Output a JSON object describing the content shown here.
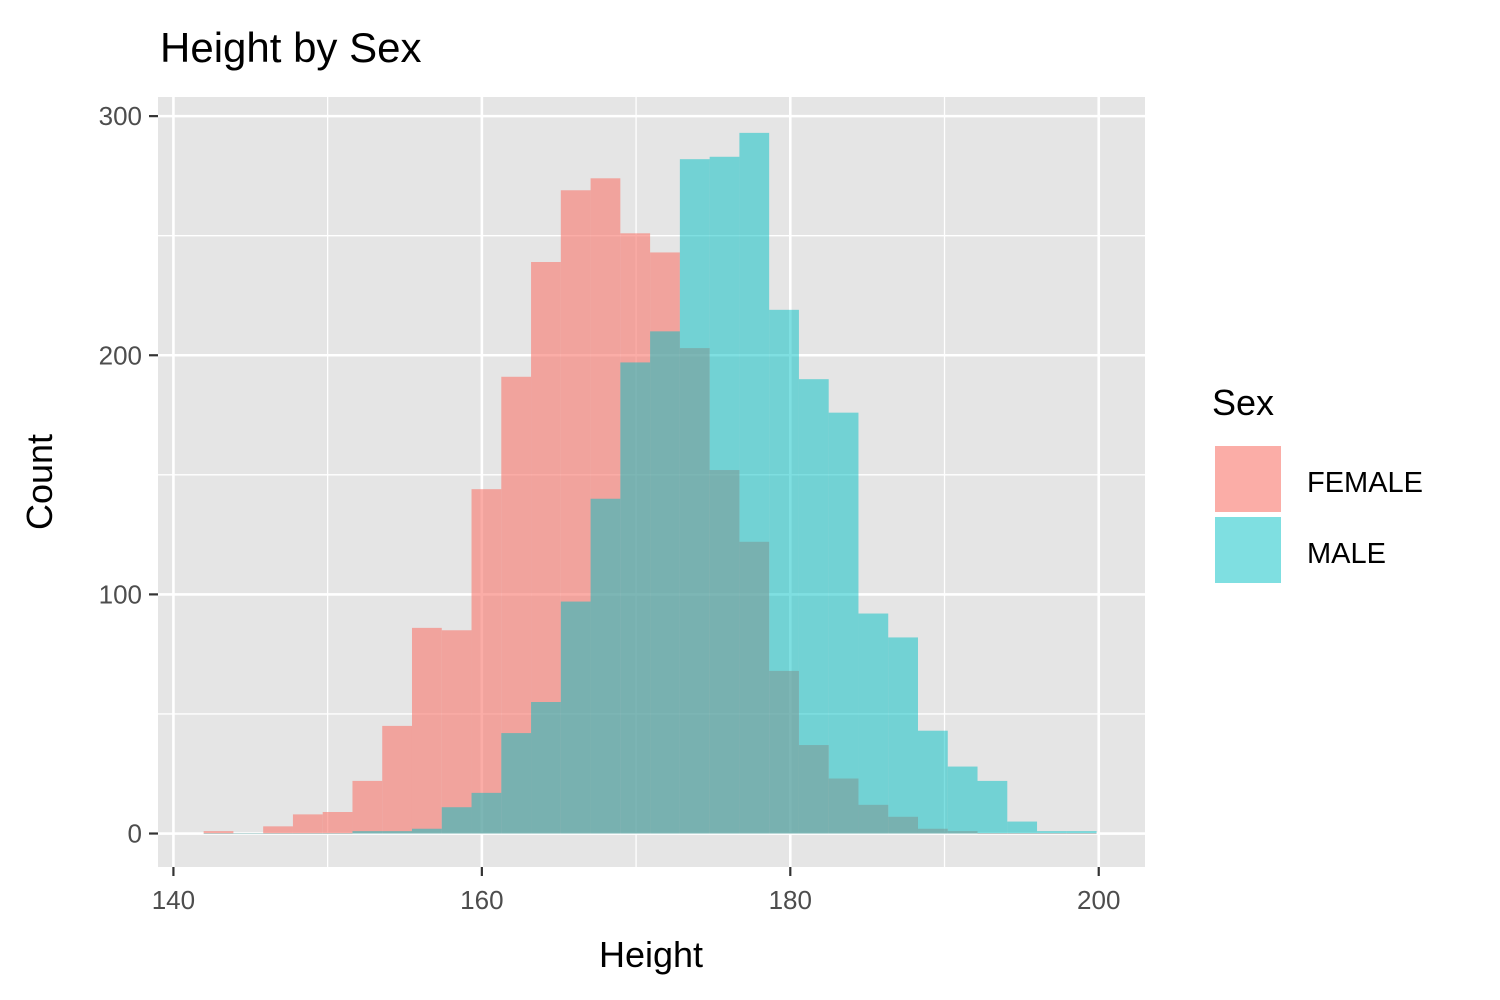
{
  "chart_data": {
    "type": "bar",
    "subtype": "overlapping-histogram",
    "title": "Height by Sex",
    "xlabel": "Height",
    "ylabel": "Count",
    "xlim": [
      139,
      203
    ],
    "ylim": [
      -14,
      308
    ],
    "x_ticks": [
      "140",
      "160",
      "180",
      "200"
    ],
    "x_tick_values": [
      140,
      160,
      180,
      200
    ],
    "y_ticks": [
      "0",
      "100",
      "200",
      "300"
    ],
    "y_tick_values": [
      0,
      100,
      200,
      300
    ],
    "grid": true,
    "panel_background": "#e5e5e5",
    "bin_width": 1.93,
    "bin_start": 141.96,
    "series": [
      {
        "name": "FEMALE",
        "color": "#f8766d",
        "values": [
          1,
          0,
          3,
          8,
          9,
          22,
          45,
          86,
          85,
          144,
          191,
          239,
          269,
          274,
          251,
          243,
          203,
          152,
          122,
          68,
          37,
          23,
          12,
          7,
          2,
          1,
          0,
          0,
          0,
          0
        ]
      },
      {
        "name": "MALE",
        "color": "#00bfc4",
        "values": [
          0,
          0,
          0,
          0,
          0,
          1,
          1,
          2,
          11,
          17,
          42,
          55,
          97,
          140,
          197,
          210,
          282,
          283,
          293,
          219,
          190,
          176,
          92,
          82,
          43,
          28,
          22,
          5,
          1,
          1
        ]
      }
    ],
    "legend": {
      "title": "Sex",
      "position": "right",
      "items": [
        "FEMALE",
        "MALE"
      ]
    }
  }
}
